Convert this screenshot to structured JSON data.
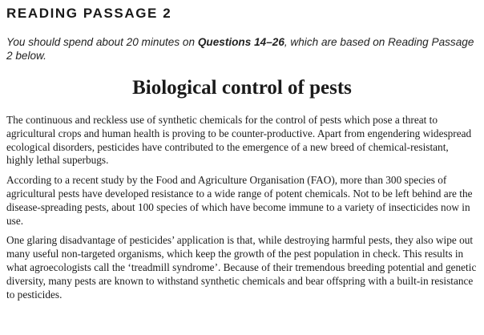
{
  "header": {
    "section": "READING PASSAGE 2"
  },
  "instructions": {
    "before": "You should spend about 20 minutes on ",
    "questions": "Questions 14–26",
    "after": ", which are based on Reading Passage 2 below."
  },
  "passage": {
    "title": "Biological control of pests",
    "paragraphs": [
      "The continuous and reckless use of synthetic chemicals for the control of pests which pose a threat to agricultural crops and human health is proving to be counter-productive. Apart from engendering widespread ecological disorders, pesticides have contributed to the emergence of a new breed of chemical-resistant, highly lethal superbugs.",
      "According to a recent study by the Food and Agriculture Organisation (FAO), more than 300 species of agricultural pests have developed resistance to a wide range of potent chemicals. Not to be left behind are the disease-spreading pests, about 100 species of which have become immune to a variety of insecticides now in use.",
      "One glaring disadvantage of pesticides’ application is that, while destroying harmful pests, they also wipe out many useful non-targeted organisms, which keep the growth of the pest population in check. This results in what agroecologists call the ‘treadmill syndrome’. Because of their tremendous breeding potential and genetic diversity, many pests are known to withstand synthetic chemicals and bear offspring with a built-in resistance to pesticides."
    ]
  }
}
